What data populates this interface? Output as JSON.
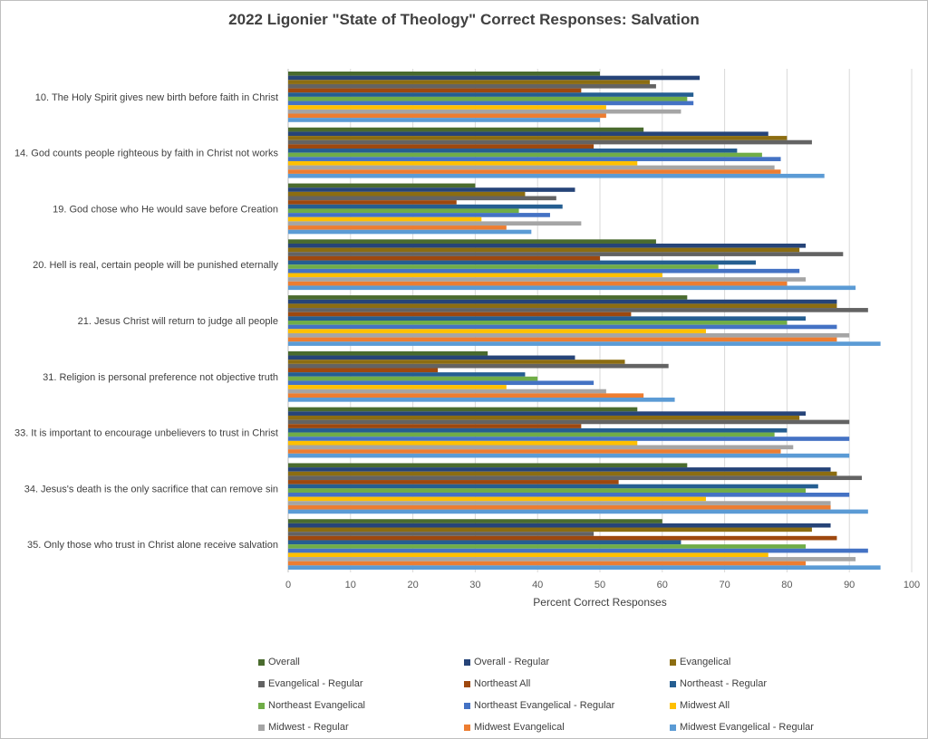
{
  "chart_data": {
    "type": "bar",
    "orientation": "horizontal",
    "title": "2022 Ligonier \"State of Theology\" Correct Responses: Salvation",
    "xlabel": "Percent Correct Responses",
    "ylabel": "",
    "xlim": [
      0,
      100
    ],
    "xticks": [
      0,
      10,
      20,
      30,
      40,
      50,
      60,
      70,
      80,
      90,
      100
    ],
    "grid": true,
    "legend_position": "bottom",
    "categories": [
      "10. The Holy Spirit gives new birth before faith in Christ",
      "14. God counts people righteous by faith in Christ not works",
      "19. God chose who He would save before Creation",
      "20. Hell is real, certain people will be punished eternally",
      "21. Jesus Christ will return to judge all people",
      "31. Religion is personal preference not objective truth",
      "33. It is important to encourage unbelievers to trust in Christ",
      "34. Jesus's death is the only sacrifice that can remove sin",
      "35. Only those who trust in Christ alone receive salvation"
    ],
    "series": [
      {
        "name": "Overall",
        "color": "#4a6b2e",
        "values": [
          50,
          57,
          30,
          59,
          64,
          32,
          56,
          64,
          60
        ]
      },
      {
        "name": "Overall - Regular",
        "color": "#264478",
        "values": [
          66,
          77,
          46,
          83,
          88,
          46,
          83,
          87,
          87
        ]
      },
      {
        "name": "Evangelical",
        "color": "#8c6d11",
        "values": [
          58,
          80,
          38,
          82,
          88,
          54,
          82,
          88,
          84
        ]
      },
      {
        "name": "Evangelical - Regular",
        "color": "#636363",
        "values": [
          59,
          84,
          43,
          89,
          93,
          61,
          90,
          92,
          49
        ]
      },
      {
        "name": "Northeast All",
        "color": "#9e480e",
        "values": [
          47,
          49,
          27,
          50,
          55,
          24,
          47,
          53,
          88
        ]
      },
      {
        "name": "Northeast - Regular",
        "color": "#255e91",
        "values": [
          65,
          72,
          44,
          75,
          83,
          38,
          80,
          85,
          63
        ]
      },
      {
        "name": "Northeast Evangelical",
        "color": "#70ad47",
        "values": [
          64,
          76,
          37,
          69,
          80,
          40,
          78,
          83,
          83
        ]
      },
      {
        "name": "Northeast Evangelical - Regular",
        "color": "#4472c4",
        "values": [
          65,
          79,
          42,
          82,
          88,
          49,
          90,
          90,
          93
        ]
      },
      {
        "name": "Midwest All",
        "color": "#ffc000",
        "values": [
          51,
          56,
          31,
          60,
          67,
          35,
          56,
          67,
          77
        ]
      },
      {
        "name": "Midwest - Regular",
        "color": "#a5a5a5",
        "values": [
          63,
          78,
          47,
          83,
          90,
          51,
          81,
          87,
          91
        ]
      },
      {
        "name": "Midwest Evangelical",
        "color": "#ed7d31",
        "values": [
          51,
          79,
          35,
          80,
          88,
          57,
          79,
          87,
          83
        ]
      },
      {
        "name": "Midwest Evangelical - Regular",
        "color": "#5b9bd5",
        "values": [
          50,
          86,
          39,
          91,
          95,
          62,
          90,
          93,
          95
        ]
      }
    ]
  }
}
